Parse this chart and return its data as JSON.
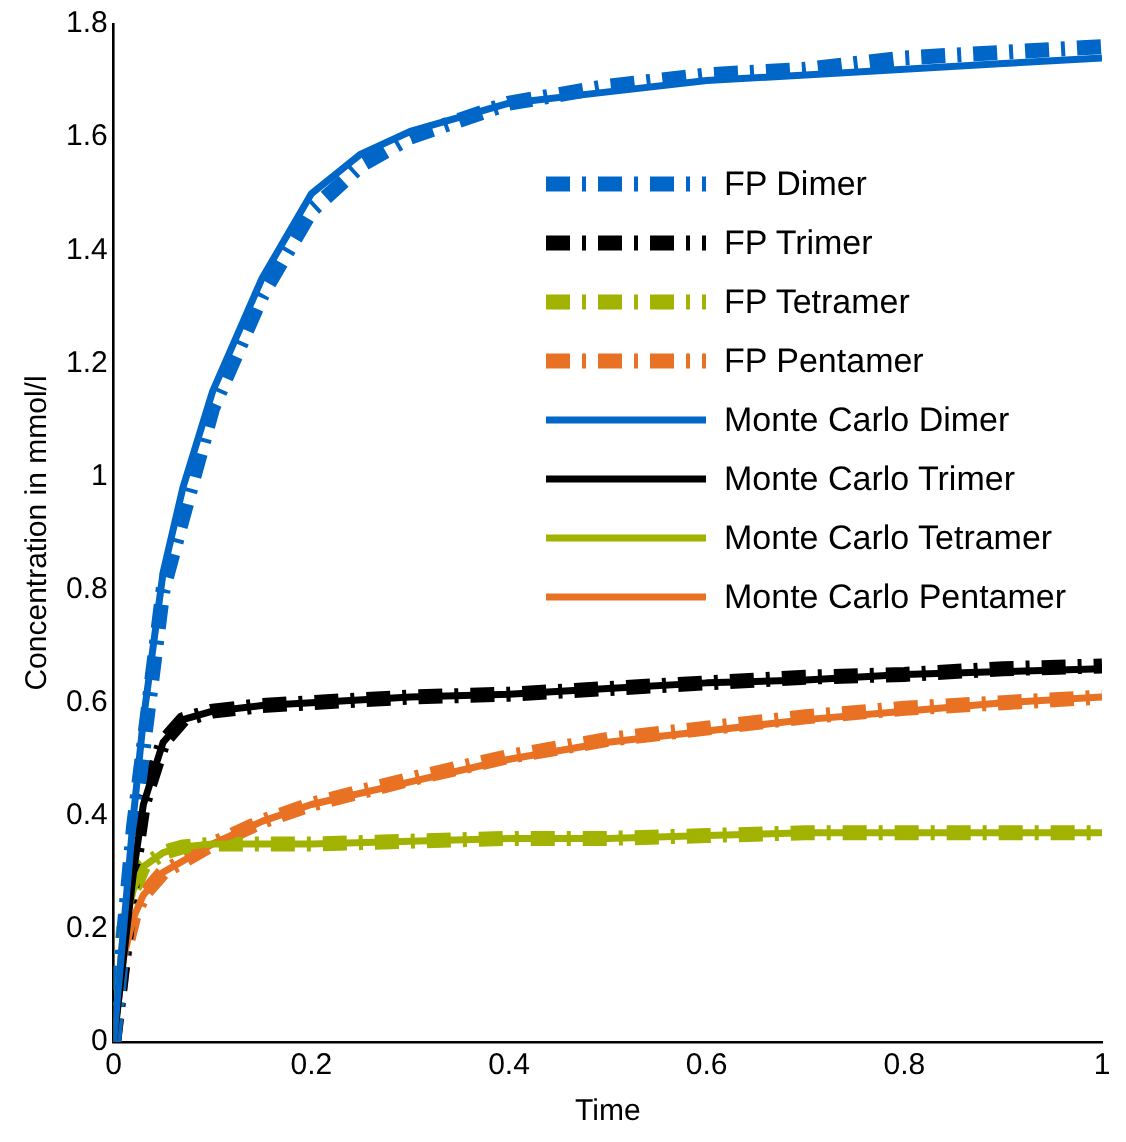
{
  "chart_data": {
    "type": "line",
    "xlabel": "Time",
    "ylabel": "Concentration in mmol/l",
    "xlim": [
      0,
      1
    ],
    "ylim": [
      0,
      1.8
    ],
    "xticks": [
      0,
      0.2,
      0.4,
      0.6,
      0.8,
      1
    ],
    "yticks": [
      0,
      0.2,
      0.4,
      0.6,
      0.8,
      1,
      1.2,
      1.4,
      1.6,
      1.8
    ],
    "grid": false,
    "legend": "top right",
    "marker": "none",
    "series": [
      {
        "name": "FP Dimer",
        "color": "#0066c8",
        "line_style": "dashed",
        "x": [
          0,
          0.02,
          0.05,
          0.1,
          0.15,
          0.2,
          0.25,
          0.3,
          0.4,
          0.5,
          0.6,
          0.7,
          0.8,
          0.9,
          1
        ],
        "values": [
          0,
          0.38,
          0.8,
          1.12,
          1.32,
          1.47,
          1.55,
          1.6,
          1.66,
          1.69,
          1.71,
          1.72,
          1.74,
          1.75,
          1.76
        ]
      },
      {
        "name": "FP Trimer",
        "color": "#000000",
        "line_style": "dashed",
        "x": [
          0,
          0.01,
          0.02,
          0.03,
          0.05,
          0.07,
          0.1,
          0.15,
          0.2,
          0.3,
          0.4,
          0.5,
          0.6,
          0.7,
          0.8,
          0.9,
          1
        ],
        "values": [
          0,
          0.15,
          0.3,
          0.42,
          0.53,
          0.57,
          0.585,
          0.595,
          0.6,
          0.61,
          0.615,
          0.625,
          0.635,
          0.645,
          0.65,
          0.66,
          0.665
        ]
      },
      {
        "name": "FP Tetramer",
        "color": "#a2b200",
        "line_style": "dashed",
        "x": [
          0,
          0.01,
          0.02,
          0.03,
          0.05,
          0.07,
          0.1,
          0.2,
          0.3,
          0.4,
          0.5,
          0.6,
          0.7,
          0.8,
          1
        ],
        "values": [
          0,
          0.2,
          0.27,
          0.31,
          0.335,
          0.345,
          0.35,
          0.35,
          0.355,
          0.36,
          0.36,
          0.365,
          0.37,
          0.37,
          0.37
        ]
      },
      {
        "name": "FP Pentamer",
        "color": "#e87124",
        "line_style": "dashed",
        "x": [
          0,
          0.01,
          0.02,
          0.03,
          0.05,
          0.07,
          0.1,
          0.15,
          0.2,
          0.3,
          0.4,
          0.5,
          0.6,
          0.7,
          0.8,
          0.9,
          1
        ],
        "values": [
          0,
          0.15,
          0.22,
          0.26,
          0.3,
          0.32,
          0.35,
          0.39,
          0.42,
          0.465,
          0.505,
          0.535,
          0.555,
          0.575,
          0.59,
          0.6,
          0.61
        ]
      },
      {
        "name": "Monte Carlo Dimer",
        "color": "#0066c8",
        "line_style": "solid",
        "x": [
          0,
          0.01,
          0.02,
          0.03,
          0.05,
          0.07,
          0.1,
          0.15,
          0.2,
          0.25,
          0.3,
          0.4,
          0.5,
          0.6,
          0.7,
          0.8,
          0.9,
          1
        ],
        "values": [
          0,
          0.2,
          0.4,
          0.57,
          0.83,
          0.98,
          1.15,
          1.35,
          1.5,
          1.57,
          1.61,
          1.66,
          1.68,
          1.7,
          1.71,
          1.72,
          1.73,
          1.74
        ]
      },
      {
        "name": "Monte Carlo Trimer",
        "color": "#000000",
        "line_style": "solid",
        "x": [
          0,
          0.01,
          0.02,
          0.03,
          0.05,
          0.07,
          0.1,
          0.15,
          0.2,
          0.3,
          0.4,
          0.5,
          0.6,
          0.7,
          0.8,
          0.9,
          1
        ],
        "values": [
          0,
          0.15,
          0.3,
          0.42,
          0.53,
          0.57,
          0.585,
          0.595,
          0.6,
          0.61,
          0.615,
          0.625,
          0.635,
          0.64,
          0.65,
          0.655,
          0.66
        ]
      },
      {
        "name": "Monte Carlo Tetramer",
        "color": "#a2b200",
        "line_style": "solid",
        "x": [
          0,
          0.01,
          0.02,
          0.03,
          0.05,
          0.07,
          0.1,
          0.2,
          0.3,
          0.4,
          0.5,
          0.6,
          0.7,
          0.8,
          1
        ],
        "values": [
          0,
          0.2,
          0.27,
          0.31,
          0.335,
          0.345,
          0.35,
          0.35,
          0.355,
          0.36,
          0.36,
          0.365,
          0.37,
          0.37,
          0.37
        ]
      },
      {
        "name": "Monte Carlo Pentamer",
        "color": "#e87124",
        "line_style": "solid",
        "x": [
          0,
          0.01,
          0.02,
          0.03,
          0.05,
          0.07,
          0.1,
          0.15,
          0.2,
          0.3,
          0.4,
          0.5,
          0.6,
          0.7,
          0.8,
          0.9,
          1
        ],
        "values": [
          0,
          0.15,
          0.22,
          0.26,
          0.3,
          0.32,
          0.35,
          0.39,
          0.42,
          0.46,
          0.5,
          0.53,
          0.55,
          0.57,
          0.585,
          0.6,
          0.61
        ]
      }
    ]
  }
}
